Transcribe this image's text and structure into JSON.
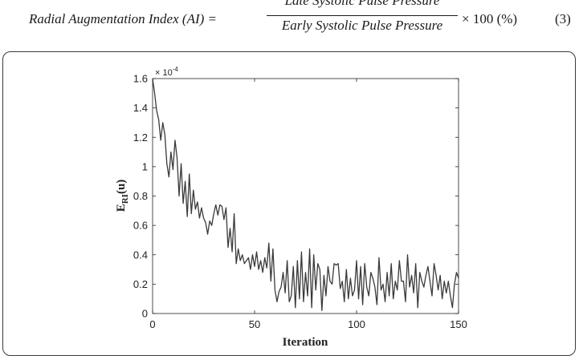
{
  "equation": {
    "lhs": "Radial Augmentation Index (AI) =",
    "numerator": "Late Systolic Pulse Pressure",
    "denominator": "Early Systolic Pulse Pressure",
    "rhs": "× 100 (%)",
    "number": "(3)"
  },
  "chart_data": {
    "type": "line",
    "xlabel": "Iteration",
    "ylabel": "E",
    "ylabel_subscript": "RI",
    "ylabel_suffix": "(u)",
    "y_exponent_label": "× 10",
    "y_exponent_power": "-4",
    "xlim": [
      0,
      150
    ],
    "ylim": [
      0,
      1.6
    ],
    "xticks": [
      "0",
      "50",
      "100",
      "150"
    ],
    "yticks": [
      "0",
      "0.2",
      "0.4",
      "0.6",
      "0.8",
      "1",
      "1.2",
      "1.4",
      "1.6"
    ],
    "grid": false,
    "series": [
      {
        "x": [
          0,
          1,
          2,
          3,
          4,
          5,
          6,
          7,
          8,
          9,
          10,
          11,
          12,
          13,
          14,
          15,
          16,
          17,
          18,
          19,
          20,
          21,
          22,
          23,
          24,
          25,
          26,
          27,
          28,
          29,
          30,
          31,
          32,
          33,
          34,
          35,
          36,
          37,
          38,
          39,
          40,
          41,
          42,
          43,
          44,
          45,
          46,
          47,
          48,
          49,
          50,
          51,
          52,
          53,
          54,
          55,
          56,
          57,
          58,
          59,
          60,
          61,
          62,
          63,
          64,
          65,
          66,
          67,
          68,
          69,
          70,
          71,
          72,
          73,
          74,
          75,
          76,
          77,
          78,
          79,
          80,
          81,
          82,
          83,
          84,
          85,
          86,
          87,
          88,
          89,
          90,
          91,
          92,
          93,
          94,
          95,
          96,
          97,
          98,
          99,
          100,
          101,
          102,
          103,
          104,
          105,
          106,
          107,
          108,
          109,
          110,
          111,
          112,
          113,
          114,
          115,
          116,
          117,
          118,
          119,
          120,
          121,
          122,
          123,
          124,
          125,
          126,
          127,
          128,
          129,
          130,
          131,
          132,
          133,
          134,
          135,
          136,
          137,
          138,
          139,
          140,
          141,
          142,
          143,
          144,
          145,
          146,
          147,
          148,
          149,
          150
        ],
        "values": [
          1.6,
          1.5,
          1.38,
          1.32,
          1.18,
          1.3,
          1.22,
          1.02,
          0.93,
          1.1,
          0.98,
          1.18,
          1.06,
          0.8,
          1.02,
          0.75,
          0.9,
          0.66,
          0.95,
          0.68,
          0.84,
          0.71,
          0.76,
          0.65,
          0.72,
          0.65,
          0.62,
          0.54,
          0.63,
          0.6,
          0.68,
          0.74,
          0.67,
          0.74,
          0.73,
          0.64,
          0.72,
          0.45,
          0.58,
          0.42,
          0.68,
          0.34,
          0.44,
          0.36,
          0.4,
          0.34,
          0.36,
          0.38,
          0.3,
          0.4,
          0.32,
          0.42,
          0.3,
          0.36,
          0.28,
          0.38,
          0.31,
          0.48,
          0.22,
          0.44,
          0.16,
          0.08,
          0.15,
          0.18,
          0.28,
          0.14,
          0.36,
          0.08,
          0.12,
          0.32,
          0.04,
          0.36,
          0.1,
          0.42,
          0.08,
          0.28,
          0.12,
          0.44,
          0.04,
          0.4,
          0.16,
          0.34,
          0.3,
          0.02,
          0.26,
          0.12,
          0.32,
          0.22,
          0.2,
          0.34,
          0.33,
          0.34,
          0.17,
          0.22,
          0.08,
          0.3,
          0.1,
          0.24,
          0.12,
          0.16,
          0.36,
          0.1,
          0.32,
          0.06,
          0.34,
          0.18,
          0.12,
          0.28,
          0.24,
          0.18,
          0.06,
          0.38,
          0.16,
          0.2,
          0.08,
          0.28,
          0.12,
          0.34,
          0.1,
          0.22,
          0.16,
          0.36,
          0.22,
          0.22,
          0.08,
          0.4,
          0.18,
          0.26,
          0.14,
          0.34,
          0.04,
          0.28,
          0.22,
          0.18,
          0.26,
          0.32,
          0.22,
          0.12,
          0.34,
          0.26,
          0.16,
          0.26,
          0.1,
          0.22,
          0.14,
          0.22,
          0.12,
          0.04,
          0.2,
          0.28,
          0.24
        ]
      }
    ]
  }
}
